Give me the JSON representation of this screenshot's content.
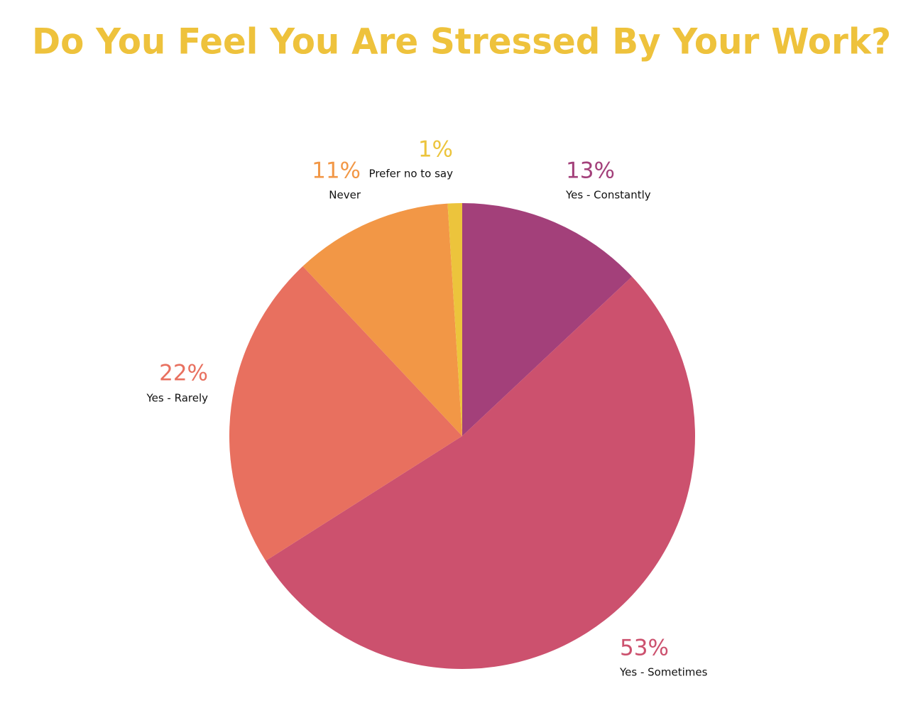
{
  "chart_data": {
    "type": "pie",
    "title": "Do You Feel You Are Stressed By Your Work?",
    "categories": [
      "Yes - Constantly",
      "Yes - Sometimes",
      "Yes - Rarely",
      "Never",
      "Prefer no to say"
    ],
    "values": [
      13,
      53,
      22,
      11,
      1
    ],
    "value_labels": [
      "13%",
      "53%",
      "22%",
      "11%",
      "1%"
    ],
    "colors": [
      "#a3407a",
      "#cc516e",
      "#e8705f",
      "#f29746",
      "#ecc43c"
    ],
    "title_color": "#eec23c"
  }
}
